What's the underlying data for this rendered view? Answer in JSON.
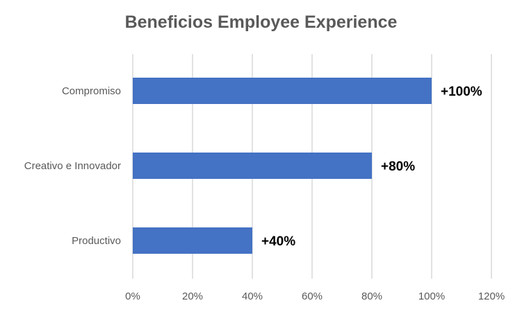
{
  "chart_data": {
    "type": "bar",
    "orientation": "horizontal",
    "title": "Beneficios Employee Experience",
    "xlabel": "",
    "ylabel": "",
    "categories": [
      "Compromiso",
      "Creativo e Innovador",
      "Productivo"
    ],
    "values": [
      1.0,
      0.8,
      0.4
    ],
    "data_labels": [
      "+100%",
      "+80%",
      "+40%"
    ],
    "xlim": [
      0,
      1.2
    ],
    "x_ticks": [
      0,
      0.2,
      0.4,
      0.6,
      0.8,
      1.0,
      1.2
    ],
    "x_tick_labels": [
      "0%",
      "20%",
      "40%",
      "60%",
      "80%",
      "100%",
      "120%"
    ],
    "grid": "vertical",
    "legend": "none",
    "bar_color": "#4472c4"
  }
}
